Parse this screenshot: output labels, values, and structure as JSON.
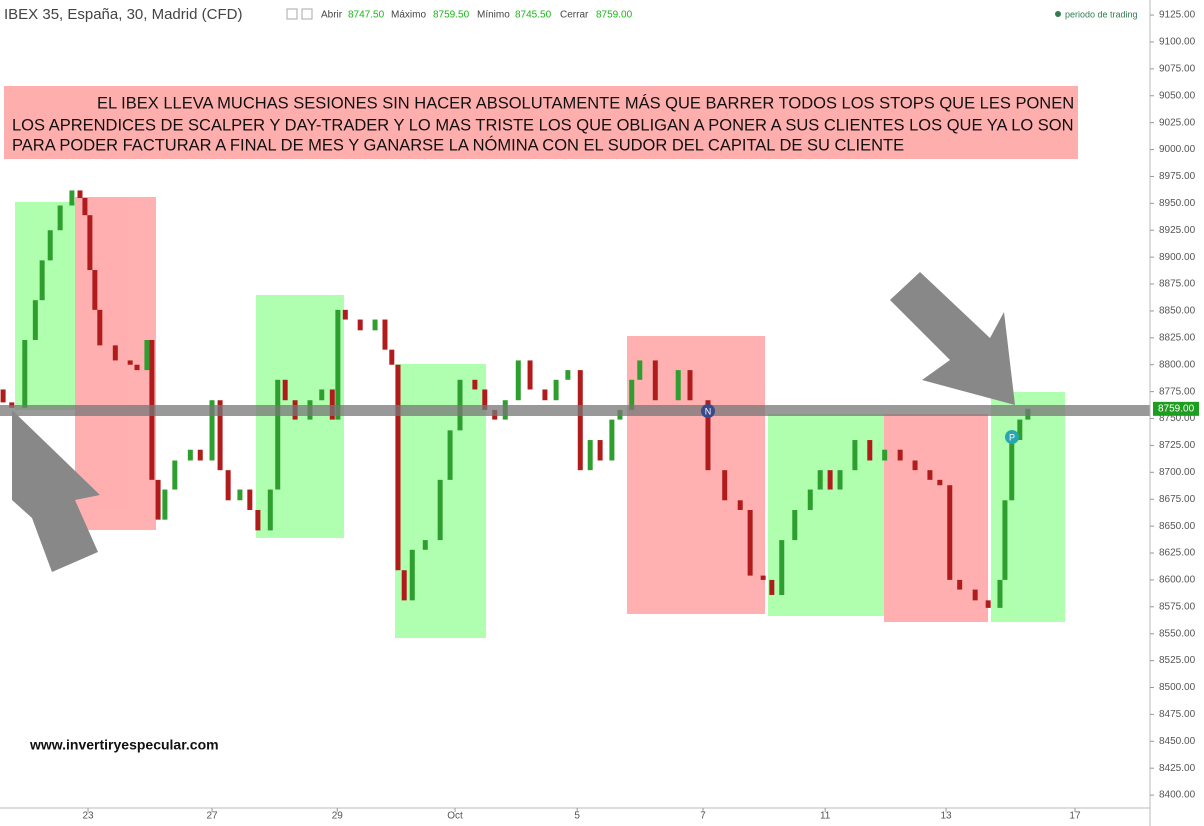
{
  "header": {
    "symbol": "IBEX 35, España, 30, Madrid (CFD)",
    "open_label": "Abrir",
    "open": "8747.50",
    "high_label": "Máximo",
    "high": "8759.50",
    "low_label": "Mínimo",
    "low": "8745.50",
    "close_label": "Cerrar",
    "close": "8759.00",
    "session": "periodo de trading"
  },
  "annotation": [
    "EL IBEX LLEVA MUCHAS SESIONES SIN HACER ABSOLUTAMENTE MÁS QUE BARRER TODOS LOS STOPS QUE LES PONEN",
    "LOS APRENDICES DE SCALPER Y DAY-TRADER Y LO MAS TRISTE LOS QUE OBLIGAN A PONER A SUS CLIENTES LOS QUE YA LO SON",
    "PARA PODER FACTURAR A FINAL DE MES Y GANARSE LA NÓMINA CON EL SUDOR DEL CAPITAL DE SU CLIENTE"
  ],
  "website": "www.invertiryespecular.com",
  "markers": [
    "N",
    "P"
  ],
  "chart_data": {
    "type": "candlestick",
    "up_color": "#2e9e2e",
    "down_color": "#b01c1c",
    "x": [
      -1.37,
      -1.23,
      -1.02,
      -0.85,
      -0.74,
      -0.61,
      -0.45,
      -0.26,
      -0.13,
      -0.05,
      0.03,
      0.11,
      0.19,
      0.44,
      0.68,
      0.79,
      0.95,
      1.03,
      1.13,
      1.24,
      1.4,
      1.65,
      1.81,
      2.0,
      2.13,
      2.26,
      2.45,
      2.61,
      2.74,
      2.94,
      3.06,
      3.18,
      3.34,
      3.58,
      3.77,
      3.94,
      4.03,
      4.15,
      4.39,
      4.63,
      4.79,
      4.9,
      5.0,
      5.1,
      5.23,
      5.44,
      5.68,
      5.84,
      6.0,
      6.24,
      6.4,
      6.56,
      6.73,
      6.94,
      7.13,
      7.37,
      7.55,
      7.74,
      7.94,
      8.1,
      8.26,
      8.45,
      8.58,
      8.77,
      8.9,
      9.15,
      9.52,
      9.71,
      10.0,
      10.27,
      10.52,
      10.68,
      10.89,
      11.03,
      11.19,
      11.4,
      11.65,
      11.81,
      11.97,
      12.13,
      12.37,
      12.61,
      12.85,
      13.1,
      13.34,
      13.58,
      13.74,
      13.9,
      14.06,
      14.31,
      14.52,
      14.71,
      14.79,
      14.9,
      15.03,
      15.16
    ],
    "open": [
      8777,
      8765,
      8760,
      8823,
      8860,
      8897,
      8925,
      8948,
      8962,
      8955,
      8939,
      8888,
      8851,
      8818,
      8804,
      8800,
      8795,
      8823,
      8693,
      8656,
      8684,
      8711,
      8721,
      8711,
      8767,
      8702,
      8674,
      8684,
      8665,
      8646,
      8684,
      8786,
      8767,
      8749,
      8767,
      8777,
      8749,
      8851,
      8842,
      8832,
      8842,
      8814,
      8800,
      8609,
      8581,
      8628,
      8637,
      8693,
      8739,
      8786,
      8777,
      8758,
      8749,
      8767,
      8804,
      8777,
      8767,
      8786,
      8795,
      8702,
      8730,
      8711,
      8749,
      8758,
      8786,
      8804,
      8767,
      8795,
      8767,
      8702,
      8674,
      8665,
      8604,
      8600,
      8586,
      8637,
      8665,
      8684,
      8702,
      8684,
      8702,
      8730,
      8711,
      8721,
      8711,
      8702,
      8693,
      8688,
      8600,
      8591,
      8581,
      8574,
      8600,
      8674,
      8730,
      8749
    ],
    "close": [
      8765,
      8760,
      8823,
      8860,
      8897,
      8925,
      8948,
      8962,
      8955,
      8939,
      8888,
      8851,
      8818,
      8804,
      8800,
      8795,
      8823,
      8693,
      8656,
      8684,
      8711,
      8721,
      8711,
      8767,
      8702,
      8674,
      8684,
      8665,
      8646,
      8684,
      8786,
      8767,
      8749,
      8767,
      8777,
      8749,
      8851,
      8842,
      8832,
      8842,
      8814,
      8800,
      8609,
      8581,
      8628,
      8637,
      8693,
      8739,
      8786,
      8777,
      8758,
      8749,
      8767,
      8804,
      8777,
      8767,
      8786,
      8795,
      8702,
      8730,
      8711,
      8749,
      8758,
      8786,
      8804,
      8767,
      8795,
      8767,
      8702,
      8674,
      8665,
      8604,
      8600,
      8586,
      8637,
      8665,
      8684,
      8702,
      8684,
      8702,
      8730,
      8711,
      8721,
      8711,
      8702,
      8693,
      8688,
      8600,
      8591,
      8581,
      8574,
      8600,
      8674,
      8730,
      8749,
      8759
    ],
    "xlim": [
      -1.42,
      17.13
    ],
    "xticks": [
      {
        "value": 0,
        "label": "23"
      },
      {
        "value": 2.0,
        "label": "27"
      },
      {
        "value": 4.02,
        "label": "29"
      },
      {
        "value": 5.92,
        "label": "Oct"
      },
      {
        "value": 7.89,
        "label": "5"
      },
      {
        "value": 9.92,
        "label": "7"
      },
      {
        "value": 11.89,
        "label": "11"
      },
      {
        "value": 13.84,
        "label": "13"
      },
      {
        "value": 15.92,
        "label": "17"
      }
    ],
    "ylim": [
      8388,
      9139
    ],
    "yticks": [
      {
        "value": 9125,
        "label": "9125.00"
      },
      {
        "value": 9100,
        "label": "9100.00"
      },
      {
        "value": 9075,
        "label": "9075.00"
      },
      {
        "value": 9050,
        "label": "9050.00"
      },
      {
        "value": 9025,
        "label": "9025.00"
      },
      {
        "value": 9000,
        "label": "9000.00"
      },
      {
        "value": 8975,
        "label": "8975.00"
      },
      {
        "value": 8950,
        "label": "8950.00"
      },
      {
        "value": 8925,
        "label": "8925.00"
      },
      {
        "value": 8900,
        "label": "8900.00"
      },
      {
        "value": 8875,
        "label": "8875.00"
      },
      {
        "value": 8850,
        "label": "8850.00"
      },
      {
        "value": 8825,
        "label": "8825.00"
      },
      {
        "value": 8800,
        "label": "8800.00"
      },
      {
        "value": 8775,
        "label": "8775.00"
      },
      {
        "value": 8750,
        "label": "8750.00"
      },
      {
        "value": 8725,
        "label": "8725.00"
      },
      {
        "value": 8700,
        "label": "8700.00"
      },
      {
        "value": 8675,
        "label": "8675.00"
      },
      {
        "value": 8650,
        "label": "8650.00"
      },
      {
        "value": 8625,
        "label": "8625.00"
      },
      {
        "value": 8600,
        "label": "8600.00"
      },
      {
        "value": 8575,
        "label": "8575.00"
      },
      {
        "value": 8550,
        "label": "8550.00"
      },
      {
        "value": 8525,
        "label": "8525.00"
      },
      {
        "value": 8500,
        "label": "8500.00"
      },
      {
        "value": 8475,
        "label": "8475.00"
      },
      {
        "value": 8450,
        "label": "8450.00"
      },
      {
        "value": 8425,
        "label": "8425.00"
      },
      {
        "value": 8400,
        "label": "8400.00"
      }
    ],
    "last_price": {
      "value": 8759,
      "label": "8759.00"
    },
    "grid": false
  }
}
